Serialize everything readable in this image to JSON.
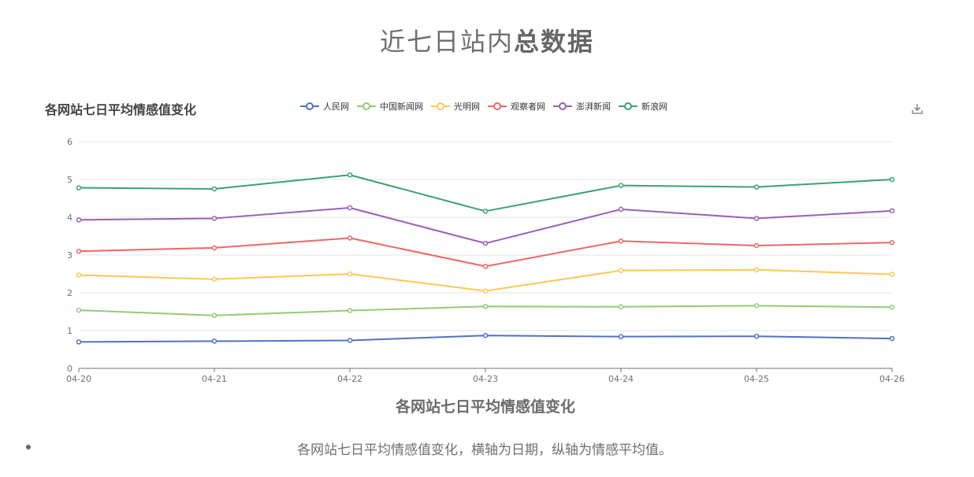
{
  "page": {
    "title_normal": "近七日站内",
    "title_bold": "总数据",
    "caption": "各网站七日平均情感值变化，横轴为日期，纵轴为情感平均值。"
  },
  "chart_data": {
    "type": "line",
    "title": "各网站七日平均情感值变化",
    "xlabel": "各网站七日平均情感值变化",
    "ylabel": "",
    "x": [
      "04-20",
      "04-21",
      "04-22",
      "04-23",
      "04-24",
      "04-25",
      "04-26"
    ],
    "ylim": [
      0,
      6
    ],
    "yticks": [
      0,
      1,
      2,
      3,
      4,
      5,
      6
    ],
    "grid": true,
    "legend_position": "top-center",
    "series": [
      {
        "name": "人民网",
        "color": "#5470c6",
        "values": [
          0.7,
          0.72,
          0.74,
          0.87,
          0.84,
          0.85,
          0.79
        ]
      },
      {
        "name": "中国新闻网",
        "color": "#91cc75",
        "values": [
          1.54,
          1.4,
          1.53,
          1.64,
          1.63,
          1.66,
          1.62
        ]
      },
      {
        "name": "光明网",
        "color": "#fac858",
        "values": [
          2.47,
          2.36,
          2.5,
          2.05,
          2.59,
          2.61,
          2.49
        ]
      },
      {
        "name": "观察者网",
        "color": "#ee6666",
        "values": [
          3.1,
          3.19,
          3.45,
          2.7,
          3.37,
          3.25,
          3.33
        ]
      },
      {
        "name": "澎湃新闻",
        "color": "#9a60b4",
        "values": [
          3.93,
          3.97,
          4.25,
          3.31,
          4.21,
          3.97,
          4.17
        ]
      },
      {
        "name": "新浪网",
        "color": "#3ba272",
        "values": [
          4.78,
          4.75,
          5.12,
          4.16,
          4.84,
          4.8,
          5.0
        ]
      }
    ]
  },
  "icons": {
    "download": "download-icon"
  }
}
